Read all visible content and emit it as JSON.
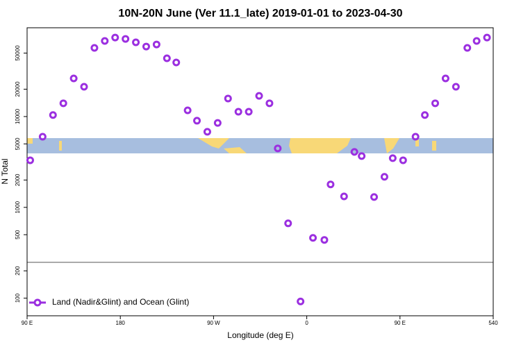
{
  "chart_data": {
    "type": "scatter",
    "title": "10N-20N June (Ver 11.1_late)   2019-01-01 to 2023-04-30",
    "xlabel": "Longitude (deg E)",
    "ylabel": "N Total",
    "log_y": true,
    "legend": "bottom-left",
    "xlim": [
      90,
      540
    ],
    "xticks": [
      {
        "value": 90,
        "label": "90 E"
      },
      180,
      {
        "value": 270,
        "label": "90 W"
      },
      {
        "value": 360,
        "label": "0"
      },
      {
        "value": 450,
        "label": "90 E"
      },
      540
    ],
    "ylim": [
      64,
      95000
    ],
    "yticks": [
      100,
      200,
      500,
      1000,
      2000,
      5000,
      10000,
      20000,
      50000
    ],
    "x": [
      93,
      105,
      115,
      125,
      135,
      145,
      155,
      165,
      175,
      185,
      195,
      205,
      215,
      225,
      234,
      245,
      254,
      264,
      274,
      284,
      294,
      304,
      314,
      324,
      332,
      342,
      354,
      366,
      377,
      383,
      396,
      406,
      413,
      425,
      435,
      443,
      453,
      465,
      474,
      484,
      494,
      504,
      515,
      524,
      534
    ],
    "series": [
      {
        "name": "Land (Nadir&Glint) and Ocean (Glint)",
        "color": "#9b2fe0",
        "values": [
          3300,
          6000,
          10400,
          14000,
          26300,
          21300,
          57000,
          68000,
          74100,
          71600,
          65600,
          59000,
          62200,
          43800,
          39400,
          11700,
          9000,
          6800,
          8500,
          15800,
          11300,
          11300,
          16900,
          14000,
          4460,
          667,
          92,
          461,
          438,
          1790,
          1320,
          4080,
          3670,
          1300,
          2170,
          3480,
          3300,
          6000,
          10400,
          14000,
          26300,
          21300,
          57000,
          68000,
          74100
        ]
      }
    ]
  }
}
